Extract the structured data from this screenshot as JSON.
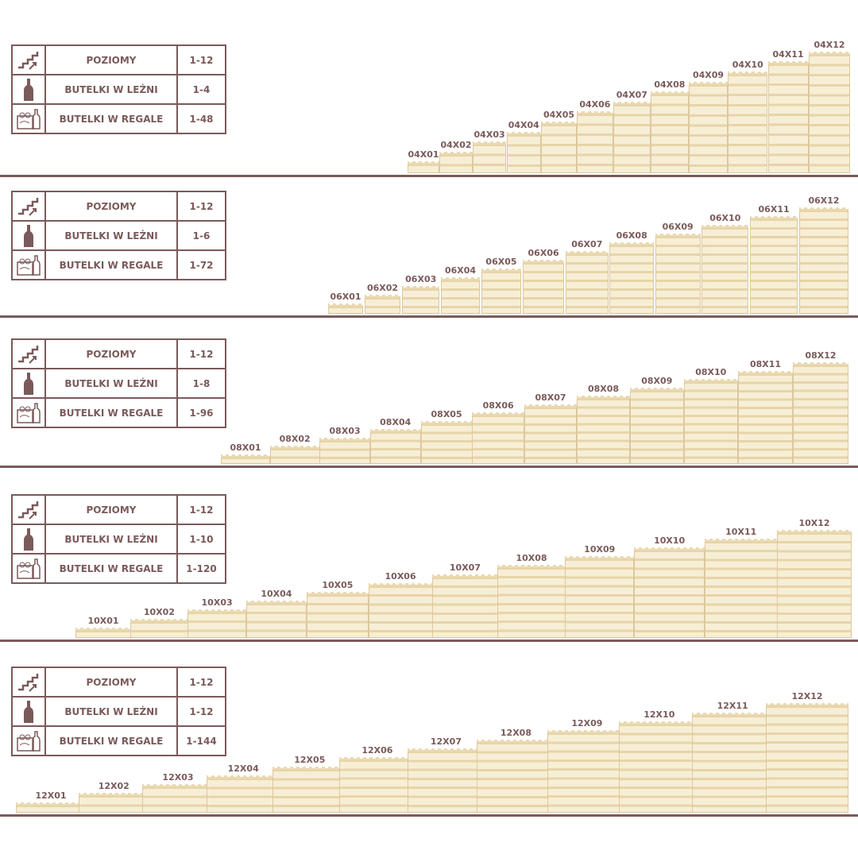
{
  "colors": {
    "brand": "#7a5a5a",
    "wood": "#f3e6c6"
  },
  "icons": {
    "levels": "stairs-arrow-icon",
    "bottles_lying": "bottle-icon",
    "bottles_in_rack": "wine-rack-icon"
  },
  "sections": [
    {
      "rows": [
        {
          "label": "POZIOMY",
          "value": "1-12"
        },
        {
          "label": "BUTELKI W LEŻNI",
          "value": "1-4"
        },
        {
          "label": "BUTELKI W REGALE",
          "value": "1-48"
        }
      ],
      "racks": [
        "04X01",
        "04X02",
        "04X03",
        "04X04",
        "04X05",
        "04X06",
        "04X07",
        "04X08",
        "04X09",
        "04X10",
        "04X11",
        "04X12"
      ]
    },
    {
      "rows": [
        {
          "label": "POZIOMY",
          "value": "1-12"
        },
        {
          "label": "BUTELKI W LEŻNI",
          "value": "1-6"
        },
        {
          "label": "BUTELKI W REGALE",
          "value": "1-72"
        }
      ],
      "racks": [
        "06X01",
        "06X02",
        "06X03",
        "06X04",
        "06X05",
        "06X06",
        "06X07",
        "06X08",
        "06X09",
        "06X10",
        "06X11",
        "06X12"
      ]
    },
    {
      "rows": [
        {
          "label": "POZIOMY",
          "value": "1-12"
        },
        {
          "label": "BUTELKI W LEŻNI",
          "value": "1-8"
        },
        {
          "label": "BUTELKI W REGALE",
          "value": "1-96"
        }
      ],
      "racks": [
        "08X01",
        "08X02",
        "08X03",
        "08X04",
        "08X05",
        "08X06",
        "08X07",
        "08X08",
        "08X09",
        "08X10",
        "08X11",
        "08X12"
      ]
    },
    {
      "rows": [
        {
          "label": "POZIOMY",
          "value": "1-12"
        },
        {
          "label": "BUTELKI W LEŻNI",
          "value": "1-10"
        },
        {
          "label": "BUTELKI W REGALE",
          "value": "1-120"
        }
      ],
      "racks": [
        "10X01",
        "10X02",
        "10X03",
        "10X04",
        "10X05",
        "10X06",
        "10X07",
        "10X08",
        "10X09",
        "10X10",
        "10X11",
        "10X12"
      ]
    },
    {
      "rows": [
        {
          "label": "POZIOMY",
          "value": "1-12"
        },
        {
          "label": "BUTELKI W LEŻNI",
          "value": "1-12"
        },
        {
          "label": "BUTELKI W REGALE",
          "value": "1-144"
        }
      ],
      "racks": [
        "12X01",
        "12X02",
        "12X03",
        "12X04",
        "12X05",
        "12X06",
        "12X07",
        "12X08",
        "12X09",
        "12X10",
        "12X11",
        "12X12"
      ]
    }
  ]
}
